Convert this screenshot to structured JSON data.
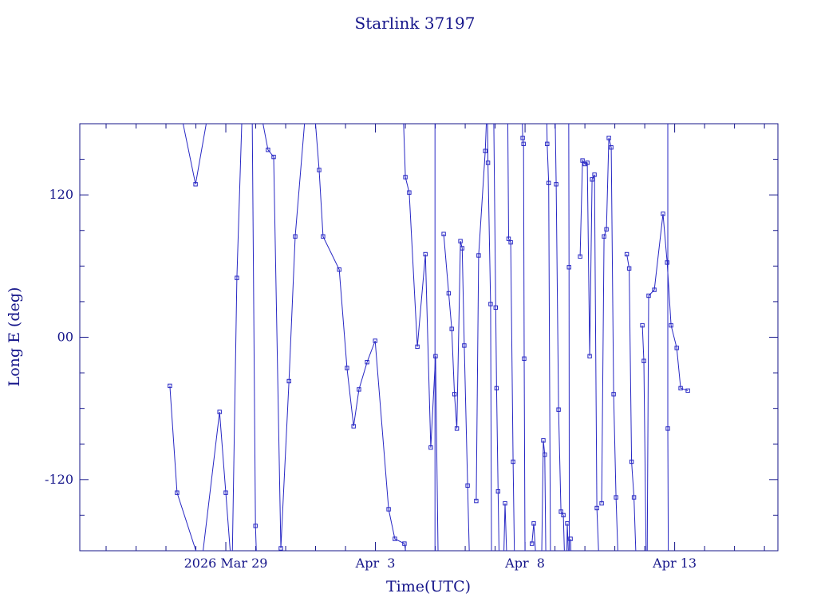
{
  "chart_data": {
    "type": "line",
    "title": "Starlink 37197",
    "xlabel": "Time(UTC)",
    "ylabel": "Long E (deg)",
    "colors": {
      "text": "#15158a",
      "line": "#2727c4"
    },
    "x_domain": [
      -4.88,
      18.45
    ],
    "y_domain": [
      -180,
      180
    ],
    "x_unit": "days relative to 2026 Mar 29",
    "x_ticks": [
      {
        "t": 0,
        "label": "2026 Mar 29"
      },
      {
        "t": 5,
        "label": "Apr  3"
      },
      {
        "t": 10,
        "label": "Apr  8"
      },
      {
        "t": 15,
        "label": "Apr 13"
      }
    ],
    "x_minor_step": 1,
    "y_ticks": [
      {
        "v": 120,
        "label": "120"
      },
      {
        "v": 0,
        "label": "00"
      },
      {
        "v": -120,
        "label": "-120"
      }
    ],
    "y_minor_step": 30,
    "marker": "open-square",
    "legend": "none",
    "grid": false,
    "segments": [
      [
        [
          -1.55,
          195
        ],
        [
          -1.01,
          129
        ],
        [
          -0.55,
          195
        ]
      ],
      [
        [
          -1.87,
          -41
        ],
        [
          -1.63,
          -131
        ],
        [
          -0.96,
          -183
        ],
        [
          -0.9,
          -195
        ]
      ],
      [
        [
          -0.83,
          -195
        ],
        [
          -0.21,
          -63
        ],
        [
          0.0,
          -131
        ],
        [
          0.19,
          -195
        ]
      ],
      [
        [
          0.21,
          -195
        ],
        [
          0.37,
          50
        ],
        [
          0.55,
          195
        ]
      ],
      [
        [
          0.88,
          195
        ],
        [
          0.99,
          -159
        ],
        [
          1.04,
          -195
        ]
      ],
      [
        [
          1.13,
          195
        ],
        [
          1.41,
          158
        ],
        [
          1.6,
          152
        ],
        [
          1.84,
          -178
        ],
        [
          2.11,
          -37
        ],
        [
          2.32,
          85
        ],
        [
          2.68,
          195
        ]
      ],
      [
        [
          2.95,
          195
        ],
        [
          3.12,
          141
        ],
        [
          3.25,
          85
        ],
        [
          3.79,
          57
        ],
        [
          4.05,
          -26
        ],
        [
          4.27,
          -75
        ],
        [
          4.45,
          -44
        ],
        [
          4.72,
          -21
        ],
        [
          4.99,
          -3
        ],
        [
          5.44,
          -145
        ],
        [
          5.65,
          -170
        ],
        [
          5.97,
          -174
        ],
        [
          6.1,
          -195
        ]
      ],
      [
        [
          5.92,
          195
        ],
        [
          6.0,
          135
        ],
        [
          6.13,
          122
        ],
        [
          6.4,
          -8
        ],
        [
          6.67,
          70
        ],
        [
          6.85,
          -93
        ],
        [
          7.01,
          -16
        ],
        [
          7.1,
          -195
        ]
      ],
      [
        [
          6.99,
          195
        ],
        [
          6.99,
          -195
        ]
      ],
      [
        [
          7.28,
          87
        ],
        [
          7.45,
          37
        ],
        [
          7.55,
          7
        ],
        [
          7.64,
          -48
        ],
        [
          7.72,
          -77
        ],
        [
          7.84,
          81
        ],
        [
          7.9,
          75
        ],
        [
          7.97,
          -7
        ],
        [
          8.08,
          -125
        ],
        [
          8.15,
          -195
        ]
      ],
      [
        [
          8.37,
          -138
        ],
        [
          8.45,
          69
        ],
        [
          8.67,
          157
        ],
        [
          8.73,
          195
        ]
      ],
      [
        [
          8.74,
          195
        ],
        [
          8.76,
          147
        ],
        [
          8.85,
          28
        ],
        [
          8.88,
          -195
        ]
      ],
      [
        [
          8.95,
          195
        ],
        [
          9.02,
          25
        ],
        [
          9.05,
          -43
        ],
        [
          9.1,
          -130
        ],
        [
          9.14,
          -195
        ]
      ],
      [
        [
          9.28,
          -195
        ],
        [
          9.33,
          -140
        ],
        [
          9.4,
          -195
        ]
      ],
      [
        [
          9.42,
          195
        ],
        [
          9.45,
          83
        ],
        [
          9.52,
          80
        ],
        [
          9.6,
          -105
        ],
        [
          9.65,
          -195
        ]
      ],
      [
        [
          9.9,
          195
        ],
        [
          9.92,
          168
        ],
        [
          9.95,
          163
        ],
        [
          9.97,
          -18
        ],
        [
          10.0,
          -195
        ]
      ],
      [
        [
          10.23,
          -174
        ],
        [
          10.29,
          -157
        ],
        [
          10.35,
          -181
        ],
        [
          10.4,
          -195
        ]
      ],
      [
        [
          10.55,
          -195
        ],
        [
          10.61,
          -87
        ],
        [
          10.66,
          -99
        ],
        [
          10.7,
          -195
        ]
      ],
      [
        [
          10.72,
          195
        ],
        [
          10.74,
          163
        ],
        [
          10.79,
          130
        ],
        [
          10.85,
          -195
        ]
      ],
      [
        [
          11.0,
          195
        ],
        [
          11.04,
          129
        ],
        [
          11.12,
          -61
        ],
        [
          11.2,
          -147
        ],
        [
          11.28,
          -150
        ],
        [
          11.33,
          -195
        ]
      ],
      [
        [
          11.39,
          -195
        ],
        [
          11.41,
          -157
        ],
        [
          11.45,
          -183
        ],
        [
          11.49,
          -195
        ]
      ],
      [
        [
          11.46,
          195
        ],
        [
          11.47,
          59
        ],
        [
          11.48,
          -195
        ]
      ],
      [
        [
          11.52,
          -170
        ],
        [
          11.55,
          -195
        ]
      ],
      [
        [
          11.84,
          68
        ],
        [
          11.92,
          149
        ],
        [
          12.0,
          146
        ],
        [
          12.08,
          147
        ],
        [
          12.16,
          -16
        ],
        [
          12.24,
          133
        ],
        [
          12.32,
          137
        ],
        [
          12.4,
          -144
        ],
        [
          12.48,
          -195
        ]
      ],
      [
        [
          12.56,
          -140
        ],
        [
          12.64,
          85
        ],
        [
          12.72,
          91
        ],
        [
          12.8,
          168
        ],
        [
          12.88,
          160
        ],
        [
          12.96,
          -48
        ],
        [
          13.04,
          -135
        ],
        [
          13.12,
          -195
        ]
      ],
      [
        [
          13.4,
          70
        ],
        [
          13.48,
          58
        ],
        [
          13.56,
          -105
        ],
        [
          13.64,
          -135
        ],
        [
          13.72,
          -195
        ]
      ],
      [
        [
          13.92,
          10
        ],
        [
          13.97,
          -20
        ],
        [
          14.05,
          -195
        ]
      ],
      [
        [
          14.08,
          -195
        ],
        [
          14.13,
          35
        ],
        [
          14.32,
          40
        ],
        [
          14.61,
          104
        ],
        [
          14.75,
          63
        ],
        [
          14.88,
          10
        ],
        [
          15.07,
          -9
        ],
        [
          15.2,
          -43
        ],
        [
          15.44,
          -45
        ]
      ],
      [
        [
          14.77,
          195
        ],
        [
          14.77,
          -77
        ],
        [
          14.79,
          -195
        ]
      ]
    ]
  }
}
